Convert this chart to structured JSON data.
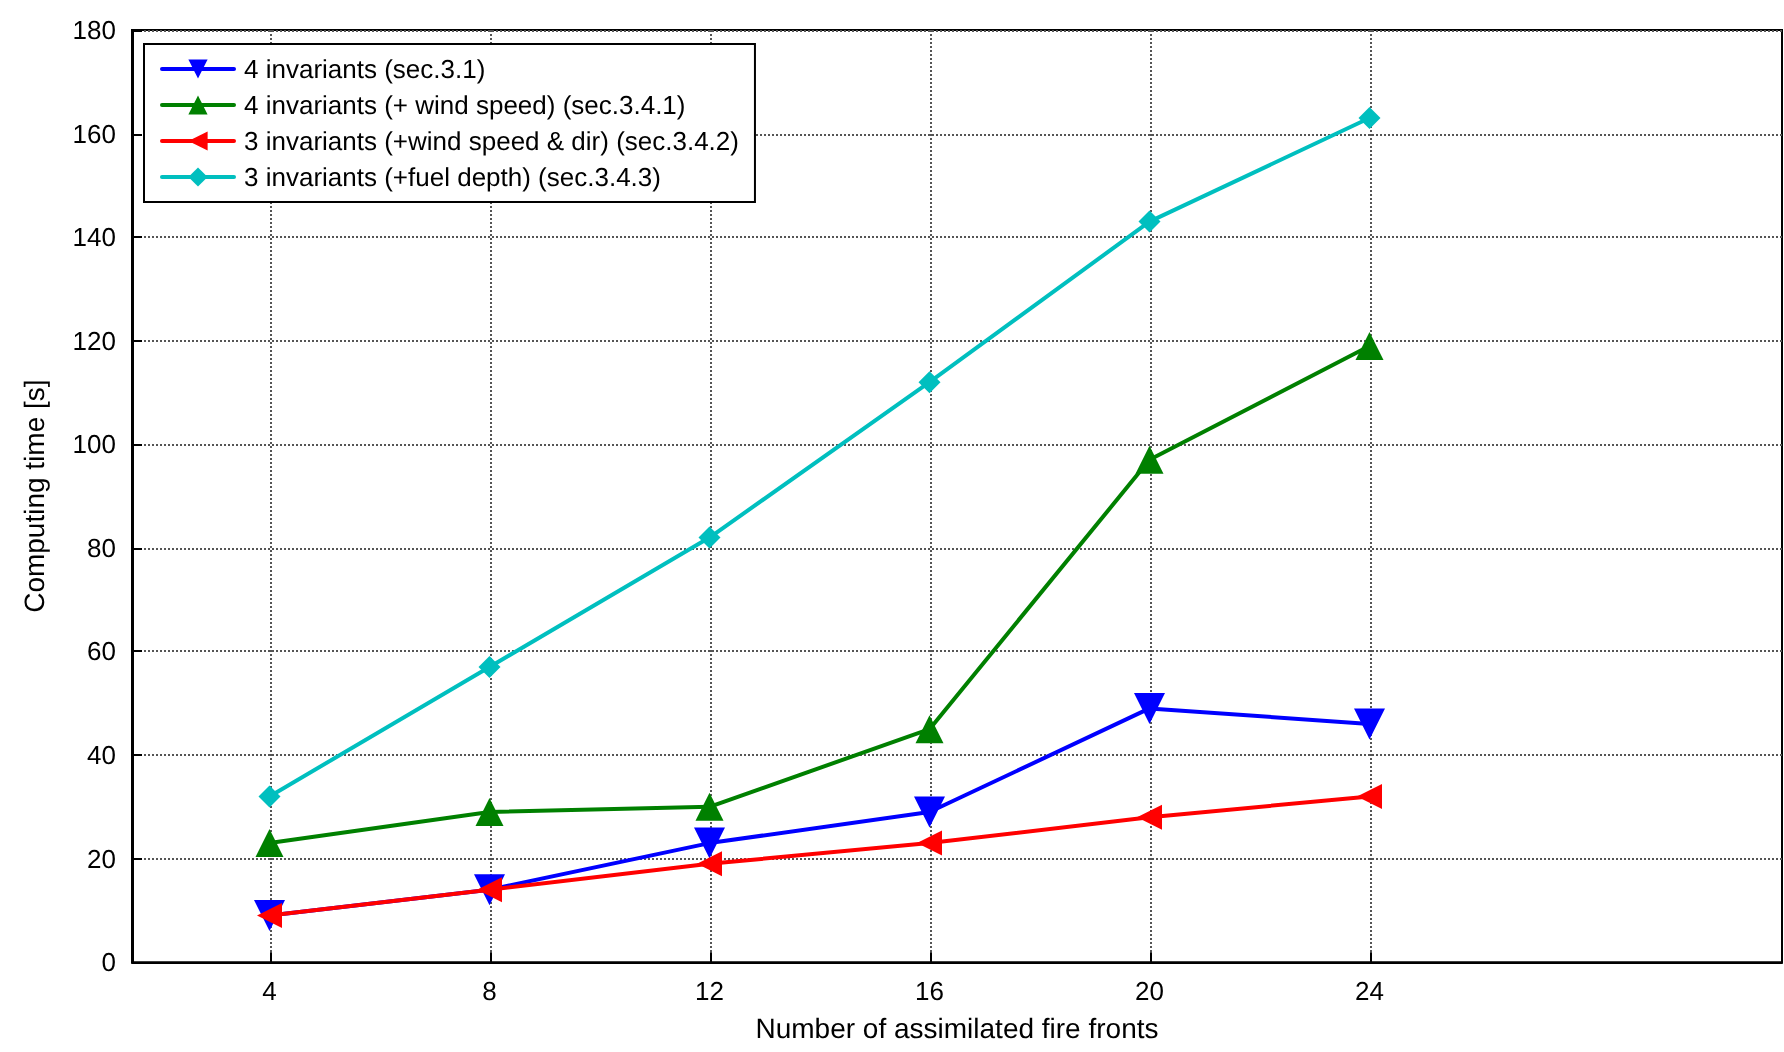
{
  "chart_data": {
    "type": "line",
    "xlabel": "Number of assimilated fire fronts",
    "ylabel": "Computing time [s]",
    "x": [
      4,
      8,
      12,
      16,
      20,
      24
    ],
    "series": [
      {
        "name": "4 invariants (sec.3.1)",
        "color": "#0000ff",
        "marker": "triangle-down",
        "values": [
          9,
          14,
          23,
          29,
          49,
          46
        ]
      },
      {
        "name": "4 invariants (+ wind speed) (sec.3.4.1)",
        "color": "#008000",
        "marker": "triangle",
        "values": [
          23,
          29,
          30,
          45,
          97,
          119
        ]
      },
      {
        "name": "3 invariants (+wind speed & dir) (sec.3.4.2)",
        "color": "#ff0000",
        "marker": "triangle-left",
        "values": [
          9,
          14,
          19,
          23,
          28,
          32
        ]
      },
      {
        "name": "3 invariants (+fuel depth) (sec.3.4.3)",
        "color": "#00bfbf",
        "marker": "diamond",
        "values": [
          32,
          57,
          82,
          112,
          143,
          163
        ]
      }
    ],
    "xlim": [
      1.5,
      31.5
    ],
    "xticks": [
      4,
      8,
      12,
      16,
      20,
      24
    ],
    "ylim": [
      0,
      180
    ],
    "yticks": [
      0,
      20,
      40,
      60,
      80,
      100,
      120,
      140,
      160,
      180
    ],
    "grid": true,
    "legend": "top left",
    "line_style": "solid"
  }
}
